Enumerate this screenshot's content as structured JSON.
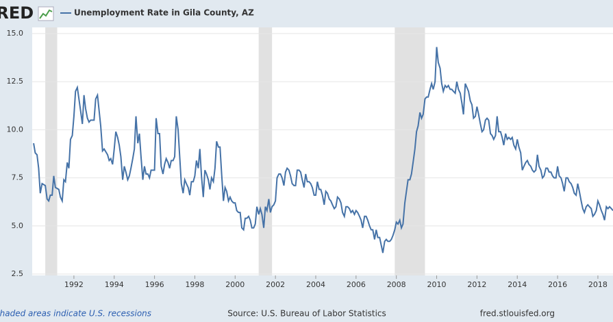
{
  "logo": "FRED",
  "footer": {
    "note": "Shaded areas indicate U.S. recessions",
    "source": "Source: U.S. Bureau of Labor Statistics",
    "site": "fred.stlouisfed.org"
  },
  "chart_data": {
    "type": "line",
    "x": [
      1990,
      1990.08,
      1990.17,
      1990.25,
      1990.33,
      1990.42,
      1990.58,
      1990.67,
      1990.75,
      1990.83,
      1990.92,
      1991,
      1991.08,
      1991.25,
      1991.33,
      1991.42,
      1991.5,
      1991.58,
      1991.67,
      1991.75,
      1991.83,
      1991.92,
      1992,
      1992.08,
      1992.17,
      1992.25,
      1992.33,
      1992.42,
      1992.5,
      1992.58,
      1992.67,
      1992.75,
      1992.83,
      1993,
      1993.08,
      1993.17,
      1993.25,
      1993.33,
      1993.42,
      1993.5,
      1993.67,
      1993.75,
      1993.83,
      1993.92,
      1994,
      1994.08,
      1994.17,
      1994.25,
      1994.33,
      1994.42,
      1994.5,
      1994.58,
      1994.67,
      1994.75,
      1994.83,
      1994.92,
      1995,
      1995.08,
      1995.17,
      1995.25,
      1995.33,
      1995.42,
      1995.5,
      1995.58,
      1995.67,
      1995.75,
      1995.83,
      1996,
      1996.08,
      1996.17,
      1996.25,
      1996.33,
      1996.42,
      1996.5,
      1996.58,
      1996.67,
      1996.75,
      1996.83,
      1996.92,
      1997,
      1997.08,
      1997.17,
      1997.25,
      1997.33,
      1997.42,
      1997.5,
      1997.58,
      1997.67,
      1997.75,
      1997.83,
      1997.92,
      1998,
      1998.08,
      1998.17,
      1998.25,
      1998.33,
      1998.42,
      1998.5,
      1998.58,
      1998.67,
      1998.75,
      1998.83,
      1998.92,
      1999,
      1999.08,
      1999.17,
      1999.25,
      1999.33,
      1999.42,
      1999.5,
      1999.58,
      1999.67,
      1999.75,
      1999.83,
      1999.92,
      2000,
      2000.08,
      2000.17,
      2000.25,
      2000.33,
      2000.42,
      2000.5,
      2000.58,
      2000.67,
      2000.75,
      2000.83,
      2000.92,
      2001,
      2001.08,
      2001.17,
      2001.25,
      2001.33,
      2001.42,
      2001.5,
      2001.58,
      2001.67,
      2001.75,
      2001.83,
      2001.92,
      2002,
      2002.08,
      2002.17,
      2002.25,
      2002.33,
      2002.42,
      2002.5,
      2002.58,
      2002.67,
      2002.75,
      2002.83,
      2002.92,
      2003,
      2003.08,
      2003.17,
      2003.25,
      2003.33,
      2003.42,
      2003.5,
      2003.58,
      2003.67,
      2003.75,
      2003.83,
      2003.92,
      2004,
      2004.08,
      2004.17,
      2004.25,
      2004.33,
      2004.42,
      2004.5,
      2004.58,
      2004.67,
      2004.75,
      2004.83,
      2004.92,
      2005,
      2005.08,
      2005.17,
      2005.25,
      2005.33,
      2005.42,
      2005.5,
      2005.58,
      2005.67,
      2005.75,
      2005.83,
      2005.92,
      2006,
      2006.08,
      2006.17,
      2006.25,
      2006.33,
      2006.42,
      2006.5,
      2006.58,
      2006.67,
      2006.75,
      2006.83,
      2006.92,
      2007,
      2007.08,
      2007.17,
      2007.25,
      2007.33,
      2007.42,
      2007.5,
      2007.58,
      2007.67,
      2007.75,
      2007.83,
      2007.92,
      2008,
      2008.08,
      2008.17,
      2008.25,
      2008.33,
      2008.42,
      2008.5,
      2008.58,
      2008.67,
      2008.75,
      2008.83,
      2008.92,
      2009,
      2009.08,
      2009.17,
      2009.25,
      2009.33,
      2009.42,
      2009.5,
      2009.58,
      2009.67,
      2009.75,
      2009.83,
      2009.92,
      2010,
      2010.08,
      2010.17,
      2010.25,
      2010.33,
      2010.42,
      2010.5,
      2010.58,
      2010.67,
      2010.75,
      2010.83,
      2010.92,
      2011,
      2011.08,
      2011.17,
      2011.25,
      2011.33,
      2011.42,
      2011.5,
      2011.58,
      2011.67,
      2011.75,
      2011.83,
      2011.92,
      2012,
      2012.08,
      2012.17,
      2012.25,
      2012.33,
      2012.42,
      2012.5,
      2012.58,
      2012.67,
      2012.75,
      2012.83,
      2012.92,
      2013,
      2013.08,
      2013.17,
      2013.25,
      2013.33,
      2013.42,
      2013.5,
      2013.58,
      2013.67,
      2013.75,
      2013.83,
      2013.92,
      2014,
      2014.08,
      2014.17,
      2014.25,
      2014.33,
      2014.42,
      2014.5,
      2014.58,
      2014.67,
      2014.75,
      2014.83,
      2014.92,
      2015,
      2015.08,
      2015.17,
      2015.25,
      2015.33,
      2015.42,
      2015.5,
      2015.58,
      2015.67,
      2015.75,
      2015.83,
      2015.92,
      2016,
      2016.08,
      2016.17,
      2016.25,
      2016.33,
      2016.42,
      2016.5,
      2016.58,
      2016.67,
      2016.75,
      2016.83,
      2016.92,
      2017,
      2017.08,
      2017.17,
      2017.25,
      2017.33,
      2017.42,
      2017.5,
      2017.58,
      2017.67,
      2017.75,
      2017.83,
      2017.92,
      2018,
      2018.08,
      2018.17,
      2018.25,
      2018.33,
      2018.42,
      2018.5,
      2018.58,
      2018.67,
      2018.75
    ],
    "series": [
      {
        "name": "Unemployment Rate in Gila County, AZ",
        "color": "#4572a7",
        "values": [
          9.3,
          8.8,
          8.7,
          8.0,
          6.7,
          7.2,
          7.1,
          6.4,
          6.3,
          6.6,
          6.6,
          7.6,
          7.0,
          6.9,
          6.5,
          6.3,
          7.4,
          7.3,
          8.3,
          8.0,
          9.5,
          9.7,
          10.7,
          12.0,
          12.2,
          11.6,
          11.0,
          10.3,
          11.8,
          11.1,
          10.6,
          10.4,
          10.5,
          10.5,
          11.6,
          11.8,
          11.0,
          10.2,
          8.9,
          9.0,
          8.7,
          8.4,
          8.5,
          8.2,
          9.0,
          9.9,
          9.6,
          9.2,
          8.6,
          7.4,
          8.1,
          7.8,
          7.4,
          7.6,
          8.0,
          8.5,
          9.0,
          10.7,
          9.3,
          9.8,
          8.6,
          7.4,
          8.1,
          7.7,
          7.7,
          7.5,
          7.9,
          7.9,
          10.6,
          9.8,
          9.8,
          8.1,
          7.7,
          8.2,
          8.5,
          8.3,
          8.0,
          8.4,
          8.4,
          8.6,
          10.7,
          10.0,
          8.6,
          7.2,
          6.7,
          7.4,
          7.2,
          7.0,
          6.6,
          7.3,
          7.3,
          7.6,
          8.4,
          8.0,
          9.0,
          7.6,
          6.5,
          7.9,
          7.7,
          7.4,
          6.9,
          7.5,
          7.3,
          8.0,
          9.4,
          9.1,
          9.1,
          7.7,
          6.3,
          7.0,
          6.8,
          6.3,
          6.5,
          6.3,
          6.2,
          6.2,
          5.8,
          5.7,
          5.7,
          4.9,
          4.8,
          5.4,
          5.4,
          5.5,
          5.3,
          4.9,
          4.9,
          5.1,
          6.0,
          5.6,
          5.9,
          5.6,
          4.9,
          6.0,
          5.8,
          6.4,
          5.7,
          6.0,
          6.1,
          6.3,
          7.5,
          7.7,
          7.7,
          7.5,
          7.1,
          7.8,
          8.0,
          7.9,
          7.6,
          7.2,
          7.1,
          7.1,
          7.9,
          7.9,
          7.8,
          7.4,
          7.0,
          7.7,
          7.3,
          7.3,
          7.2,
          7.0,
          6.6,
          6.6,
          7.3,
          6.9,
          6.9,
          6.6,
          6.1,
          6.8,
          6.7,
          6.4,
          6.3,
          6.1,
          5.9,
          6.0,
          6.5,
          6.4,
          6.2,
          5.7,
          5.5,
          6.0,
          6.0,
          5.9,
          5.7,
          5.8,
          5.6,
          5.8,
          5.7,
          5.5,
          5.3,
          4.9,
          5.5,
          5.5,
          5.3,
          5.0,
          4.8,
          4.8,
          4.3,
          4.8,
          4.4,
          4.4,
          4.0,
          3.6,
          4.2,
          4.3,
          4.2,
          4.2,
          4.3,
          4.5,
          4.8,
          5.2,
          5.1,
          5.3,
          4.9,
          5.1,
          6.2,
          6.8,
          7.4,
          7.4,
          7.7,
          8.3,
          9.0,
          9.9,
          10.2,
          10.9,
          10.6,
          10.8,
          11.6,
          11.7,
          11.7,
          12.1,
          12.4,
          12.1,
          12.5,
          14.3,
          13.5,
          13.2,
          12.4,
          12.0,
          12.3,
          12.2,
          12.3,
          12.1,
          12.1,
          12.0,
          11.9,
          12.5,
          12.1,
          11.9,
          11.4,
          10.8,
          12.4,
          12.2,
          12.0,
          11.5,
          11.3,
          10.6,
          10.7,
          11.2,
          10.8,
          10.3,
          9.9,
          10.0,
          10.5,
          10.6,
          10.5,
          9.8,
          9.7,
          9.5,
          9.7,
          10.7,
          9.9,
          9.9,
          9.6,
          9.2,
          9.8,
          9.5,
          9.6,
          9.5,
          9.6,
          9.2,
          9.0,
          9.5,
          9.1,
          8.8,
          7.9,
          8.1,
          8.3,
          8.4,
          8.2,
          8.1,
          7.9,
          7.8,
          7.9,
          8.7,
          8.1,
          7.9,
          7.5,
          7.6,
          8.0,
          8.0,
          7.8,
          7.8,
          7.6,
          7.5,
          7.5,
          8.1,
          7.6,
          7.5,
          7.2,
          6.8,
          7.5,
          7.5,
          7.3,
          7.2,
          7.0,
          6.7,
          6.6,
          7.2,
          6.8,
          6.3,
          5.9,
          5.7,
          6.0,
          6.1,
          6.0,
          5.9,
          5.5,
          5.6,
          5.8,
          6.3,
          6.1,
          5.8,
          5.6,
          5.3,
          6.0,
          5.9,
          6.0,
          5.9,
          5.8
        ]
      }
    ],
    "recessions": [
      [
        1990.58,
        1991.17
      ],
      [
        2001.17,
        2001.83
      ],
      [
        2007.92,
        2009.42
      ]
    ],
    "xlim": [
      1989.93,
      2018.75
    ],
    "xticks": [
      1992,
      1994,
      1996,
      1998,
      2000,
      2002,
      2004,
      2006,
      2008,
      2010,
      2012,
      2014,
      2016,
      2018
    ],
    "ylim": [
      2.5,
      15
    ],
    "yticks": [
      2.5,
      {
        "value": 5,
        "label": "5.0"
      },
      7.5,
      {
        "value": 10,
        "label": "10.0"
      },
      12.5,
      {
        "value": 15,
        "label": "15.0"
      }
    ],
    "grid": true
  }
}
